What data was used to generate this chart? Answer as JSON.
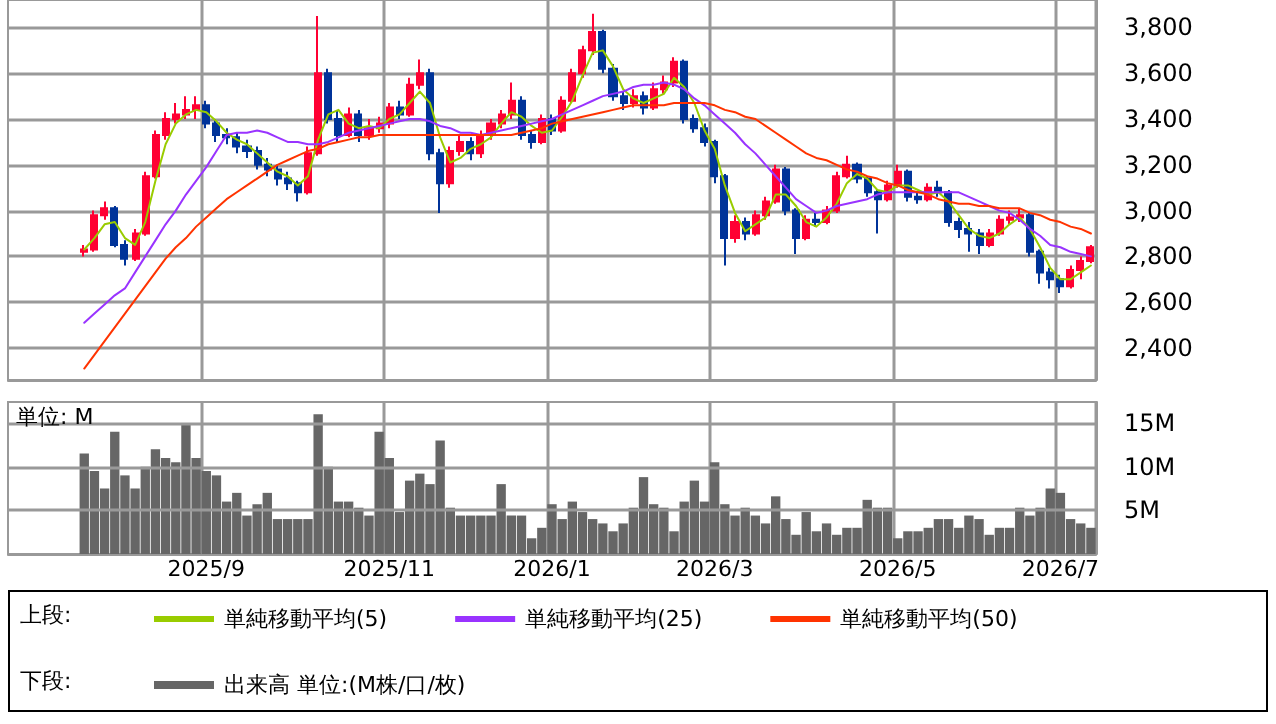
{
  "chart_data": [
    {
      "type": "candlestick",
      "categories": [
        null,
        null,
        null,
        null,
        null,
        null,
        null,
        null,
        null,
        null,
        null,
        null,
        null,
        null,
        null,
        null,
        null,
        null,
        null,
        "2025/9",
        null,
        null,
        null,
        null,
        null,
        null,
        null,
        null,
        null,
        null,
        null,
        null,
        null,
        null,
        null,
        null,
        null,
        "2025/11",
        null,
        null,
        null,
        null,
        null,
        null,
        null,
        null,
        null,
        null,
        null,
        null,
        null,
        null,
        null,
        "2026/1",
        null,
        null,
        null,
        null,
        null,
        null,
        null,
        null,
        null,
        null,
        null,
        null,
        null,
        null,
        null,
        "2026/3",
        null,
        null,
        null,
        null,
        null,
        null,
        null,
        null,
        null,
        null,
        null,
        null,
        null,
        null,
        null,
        null,
        null,
        "2026/5",
        null,
        null,
        null,
        null,
        null,
        null,
        null,
        null,
        null,
        null,
        null,
        null,
        null,
        null,
        null,
        "2026/7",
        null,
        null,
        null
      ],
      "ylim": [
        2260,
        3920
      ],
      "yticks": [
        {
          "value": 2400,
          "label": "2,400"
        },
        {
          "value": 2600,
          "label": "2,600"
        },
        {
          "value": 2800,
          "label": "2,800"
        },
        {
          "value": 3000,
          "label": "3,000"
        },
        {
          "value": 3200,
          "label": "3,200"
        },
        {
          "value": 3400,
          "label": "3,400"
        },
        {
          "value": 3600,
          "label": "3,600"
        },
        {
          "value": 3800,
          "label": "3,800"
        }
      ],
      "grid": true,
      "tick_labels": "y",
      "legend": "bottom",
      "marker": "none",
      "line_style": "solid",
      "annotations": [
        "上段:"
      ],
      "series": [
        {
          "type": "candlestick",
          "ohlc": [
            null,
            null,
            null,
            null,
            null,
            null,
            null,
            [
              2820,
              2850,
              2800,
              2830
            ],
            [
              2830,
              3000,
              2820,
              2980
            ],
            [
              2980,
              3040,
              2960,
              3010
            ],
            [
              3010,
              3020,
              2840,
              2850
            ],
            [
              2850,
              2870,
              2760,
              2790
            ],
            [
              2790,
              2920,
              2780,
              2900
            ],
            [
              2900,
              3170,
              2890,
              3150
            ],
            [
              3150,
              3350,
              3140,
              3330
            ],
            [
              3330,
              3430,
              3310,
              3400
            ],
            [
              3400,
              3470,
              3380,
              3420
            ],
            [
              3420,
              3500,
              3400,
              3440
            ],
            [
              3440,
              3500,
              3400,
              3460
            ],
            [
              3460,
              3480,
              3360,
              3380
            ],
            [
              3380,
              3400,
              3300,
              3330
            ],
            [
              3330,
              3360,
              3290,
              3320
            ],
            [
              3320,
              3340,
              3250,
              3280
            ],
            [
              3280,
              3310,
              3230,
              3260
            ],
            [
              3260,
              3280,
              3180,
              3200
            ],
            [
              3200,
              3230,
              3150,
              3180
            ],
            [
              3180,
              3200,
              3110,
              3140
            ],
            [
              3140,
              3170,
              3090,
              3120
            ],
            [
              3120,
              3130,
              3040,
              3080
            ],
            [
              3080,
              3280,
              3070,
              3250
            ],
            [
              3250,
              3850,
              3240,
              3600
            ],
            [
              3600,
              3620,
              3380,
              3400
            ],
            [
              3400,
              3440,
              3300,
              3330
            ],
            [
              3330,
              3450,
              3320,
              3420
            ],
            [
              3420,
              3440,
              3300,
              3330
            ],
            [
              3330,
              3400,
              3310,
              3360
            ],
            [
              3360,
              3410,
              3340,
              3380
            ],
            [
              3380,
              3470,
              3360,
              3450
            ],
            [
              3450,
              3480,
              3400,
              3420
            ],
            [
              3420,
              3580,
              3410,
              3550
            ],
            [
              3550,
              3660,
              3530,
              3600
            ],
            [
              3600,
              3620,
              3220,
              3250
            ],
            [
              3250,
              3270,
              2990,
              3120
            ],
            [
              3120,
              3280,
              3100,
              3260
            ],
            [
              3260,
              3330,
              3240,
              3300
            ],
            [
              3300,
              3320,
              3220,
              3250
            ],
            [
              3250,
              3350,
              3230,
              3330
            ],
            [
              3330,
              3400,
              3310,
              3380
            ],
            [
              3380,
              3440,
              3360,
              3420
            ],
            [
              3420,
              3560,
              3400,
              3480
            ],
            [
              3480,
              3500,
              3310,
              3330
            ],
            [
              3330,
              3350,
              3270,
              3300
            ],
            [
              3300,
              3420,
              3290,
              3400
            ],
            [
              3400,
              3420,
              3330,
              3350
            ],
            [
              3350,
              3500,
              3340,
              3480
            ],
            [
              3480,
              3620,
              3470,
              3600
            ],
            [
              3600,
              3720,
              3580,
              3700
            ],
            [
              3700,
              3860,
              3680,
              3780
            ],
            [
              3780,
              3790,
              3600,
              3620
            ],
            [
              3620,
              3640,
              3480,
              3500
            ],
            [
              3500,
              3520,
              3440,
              3470
            ],
            [
              3470,
              3530,
              3450,
              3500
            ],
            [
              3500,
              3520,
              3420,
              3450
            ],
            [
              3450,
              3560,
              3440,
              3530
            ],
            [
              3530,
              3590,
              3510,
              3560
            ],
            [
              3560,
              3670,
              3540,
              3650
            ],
            [
              3650,
              3660,
              3380,
              3400
            ],
            [
              3400,
              3420,
              3340,
              3360
            ],
            [
              3360,
              3380,
              3280,
              3300
            ],
            [
              3300,
              3310,
              3120,
              3150
            ],
            [
              3150,
              3160,
              2760,
              2880
            ],
            [
              2880,
              2980,
              2860,
              2950
            ],
            [
              2950,
              2970,
              2870,
              2900
            ],
            [
              2900,
              3000,
              2890,
              2980
            ],
            [
              2980,
              3060,
              2960,
              3040
            ],
            [
              3040,
              3200,
              3030,
              3180
            ],
            [
              3180,
              3190,
              2980,
              3000
            ],
            [
              3000,
              3010,
              2810,
              2880
            ],
            [
              2880,
              2980,
              2870,
              2960
            ],
            [
              2960,
              2990,
              2930,
              2950
            ],
            [
              2950,
              3020,
              2940,
              3000
            ],
            [
              3000,
              3170,
              2990,
              3150
            ],
            [
              3150,
              3240,
              3140,
              3200
            ],
            [
              3200,
              3210,
              3120,
              3140
            ],
            [
              3140,
              3150,
              3060,
              3080
            ],
            [
              3080,
              3090,
              2900,
              3050
            ],
            [
              3050,
              3130,
              3040,
              3110
            ],
            [
              3110,
              3200,
              3100,
              3170
            ],
            [
              3170,
              3180,
              3040,
              3060
            ],
            [
              3060,
              3080,
              3030,
              3050
            ],
            [
              3050,
              3120,
              3040,
              3100
            ],
            [
              3100,
              3130,
              3060,
              3080
            ],
            [
              3080,
              3090,
              2930,
              2950
            ],
            [
              2950,
              2970,
              2880,
              2920
            ],
            [
              2920,
              2950,
              2820,
              2900
            ],
            [
              2900,
              2920,
              2810,
              2850
            ],
            [
              2850,
              2920,
              2840,
              2900
            ],
            [
              2900,
              2980,
              2890,
              2960
            ],
            [
              2960,
              3000,
              2940,
              2970
            ],
            [
              2970,
              3010,
              2950,
              2980
            ],
            [
              2980,
              2990,
              2800,
              2820
            ],
            [
              2820,
              2830,
              2680,
              2730
            ],
            [
              2730,
              2750,
              2660,
              2700
            ],
            [
              2700,
              2720,
              2640,
              2670
            ],
            [
              2670,
              2760,
              2660,
              2740
            ],
            [
              2740,
              2800,
              2700,
              2780
            ],
            [
              2780,
              2850,
              2770,
              2840
            ]
          ],
          "colors": [
            null,
            null,
            null,
            null,
            null,
            null,
            null,
            "#ff0033",
            "#ff0033",
            "#ff0033",
            "#003399",
            "#003399",
            "#ff0033",
            "#ff0033",
            "#ff0033",
            "#ff0033",
            "#ff0033",
            "#ff0033",
            "#ff0033",
            "#003399",
            "#003399",
            "#003399",
            "#003399",
            "#003399",
            "#003399",
            "#003399",
            "#003399",
            "#003399",
            "#003399",
            "#ff0033",
            "#ff0033",
            "#003399",
            "#003399",
            "#ff0033",
            "#003399",
            "#ff0033",
            "#ff0033",
            "#ff0033",
            "#003399",
            "#ff0033",
            "#ff0033",
            "#003399",
            "#003399",
            "#ff0033",
            "#ff0033",
            "#003399",
            "#ff0033",
            "#ff0033",
            "#ff0033",
            "#ff0033",
            "#003399",
            "#003399",
            "#ff0033",
            "#003399",
            "#ff0033",
            "#ff0033",
            "#ff0033",
            "#ff0033",
            "#003399",
            "#003399",
            "#003399",
            "#ff0033",
            "#003399",
            "#ff0033",
            "#ff0033",
            "#ff0033",
            "#003399",
            "#003399",
            "#003399",
            "#003399",
            "#003399",
            "#ff0033",
            "#003399",
            "#ff0033",
            "#ff0033",
            "#ff0033",
            "#003399",
            "#003399",
            "#ff0033",
            "#003399",
            "#ff0033",
            "#ff0033",
            "#ff0033",
            "#003399",
            "#003399",
            "#003399",
            "#ff0033",
            "#ff0033",
            "#003399",
            "#003399",
            "#ff0033",
            "#003399",
            "#003399",
            "#003399",
            "#003399",
            "#003399",
            "#ff0033",
            "#ff0033",
            "#ff0033",
            "#ff0033",
            "#003399",
            "#003399",
            "#003399",
            "#003399",
            "#ff0033",
            "#ff0033",
            "#ff0033"
          ]
        },
        {
          "type": "line",
          "name": "単純移動平均(5)",
          "color": "#99cc00",
          "values": [
            null,
            null,
            null,
            null,
            null,
            null,
            null,
            2830,
            2880,
            2940,
            2950,
            2880,
            2850,
            2950,
            3130,
            3290,
            3380,
            3420,
            3440,
            3430,
            3390,
            3340,
            3310,
            3290,
            3250,
            3210,
            3170,
            3150,
            3110,
            3150,
            3310,
            3420,
            3440,
            3380,
            3360,
            3370,
            3360,
            3400,
            3420,
            3470,
            3520,
            3470,
            3320,
            3210,
            3230,
            3270,
            3290,
            3320,
            3380,
            3430,
            3410,
            3370,
            3340,
            3350,
            3410,
            3480,
            3590,
            3690,
            3700,
            3630,
            3530,
            3490,
            3470,
            3490,
            3510,
            3580,
            3540,
            3470,
            3350,
            3270,
            3110,
            2990,
            2910,
            2940,
            2970,
            3070,
            3070,
            3020,
            2950,
            2930,
            2970,
            3030,
            3120,
            3160,
            3140,
            3090,
            3080,
            3110,
            3110,
            3090,
            3070,
            3080,
            3040,
            2980,
            2920,
            2890,
            2880,
            2900,
            2940,
            2970,
            2920,
            2840,
            2750,
            2700,
            2700,
            2730,
            2760
          ]
        },
        {
          "type": "line",
          "name": "単純移動平均(25)",
          "color": "#9933ff",
          "values": [
            null,
            null,
            null,
            null,
            null,
            null,
            null,
            2510,
            2550,
            2590,
            2630,
            2660,
            2730,
            2800,
            2870,
            2940,
            3000,
            3070,
            3130,
            3190,
            3260,
            3330,
            3340,
            3340,
            3350,
            3340,
            3320,
            3300,
            3300,
            3290,
            3290,
            3300,
            3320,
            3340,
            3350,
            3360,
            3370,
            3380,
            3390,
            3400,
            3400,
            3390,
            3370,
            3360,
            3340,
            3340,
            3330,
            3340,
            3350,
            3360,
            3370,
            3380,
            3390,
            3400,
            3420,
            3440,
            3460,
            3480,
            3500,
            3510,
            3520,
            3540,
            3550,
            3550,
            3560,
            3550,
            3530,
            3490,
            3460,
            3420,
            3380,
            3340,
            3290,
            3250,
            3200,
            3150,
            3100,
            3050,
            3020,
            2990,
            3000,
            3020,
            3030,
            3040,
            3050,
            3070,
            3080,
            3080,
            3080,
            3080,
            3080,
            3080,
            3080,
            3080,
            3060,
            3040,
            3020,
            3000,
            2990,
            2960,
            2920,
            2890,
            2850,
            2840,
            2820,
            2810,
            2800
          ]
        },
        {
          "type": "line",
          "name": "単純移動平均(50)",
          "color": "#ff3300",
          "values": [
            null,
            null,
            null,
            null,
            null,
            null,
            null,
            2310,
            2370,
            2430,
            2490,
            2550,
            2610,
            2670,
            2730,
            2790,
            2840,
            2880,
            2930,
            2970,
            3010,
            3050,
            3080,
            3110,
            3140,
            3170,
            3200,
            3220,
            3240,
            3260,
            3270,
            3290,
            3300,
            3310,
            3320,
            3320,
            3330,
            3330,
            3330,
            3330,
            3330,
            3330,
            3330,
            3330,
            3330,
            3330,
            3330,
            3330,
            3330,
            3330,
            3340,
            3350,
            3360,
            3380,
            3390,
            3400,
            3410,
            3420,
            3430,
            3440,
            3450,
            3460,
            3460,
            3460,
            3460,
            3470,
            3470,
            3470,
            3470,
            3460,
            3440,
            3430,
            3410,
            3400,
            3370,
            3340,
            3310,
            3280,
            3250,
            3230,
            3220,
            3200,
            3180,
            3170,
            3150,
            3140,
            3120,
            3110,
            3090,
            3080,
            3070,
            3050,
            3040,
            3030,
            3030,
            3020,
            3020,
            3010,
            3010,
            3010,
            2990,
            2980,
            2960,
            2950,
            2930,
            2920,
            2900
          ]
        }
      ]
    },
    {
      "type": "bar",
      "categories": [
        null,
        null,
        null,
        null,
        null,
        null,
        null,
        null,
        null,
        null,
        null,
        null,
        null,
        null,
        null,
        null,
        null,
        null,
        null,
        "2025/9",
        null,
        null,
        null,
        null,
        null,
        null,
        null,
        null,
        null,
        null,
        null,
        null,
        null,
        null,
        null,
        null,
        null,
        "2025/11",
        null,
        null,
        null,
        null,
        null,
        null,
        null,
        null,
        null,
        null,
        null,
        null,
        null,
        null,
        null,
        "2026/1",
        null,
        null,
        null,
        null,
        null,
        null,
        null,
        null,
        null,
        null,
        null,
        null,
        null,
        null,
        null,
        "2026/3",
        null,
        null,
        null,
        null,
        null,
        null,
        null,
        null,
        null,
        null,
        null,
        null,
        null,
        null,
        null,
        null,
        null,
        "2026/5",
        null,
        null,
        null,
        null,
        null,
        null,
        null,
        null,
        null,
        null,
        null,
        null,
        null,
        null,
        null,
        "2026/7",
        null,
        null,
        null
      ],
      "ylim": [
        0,
        17.4
      ],
      "yticks": [
        {
          "value": 5,
          "label": "5M"
        },
        {
          "value": 10,
          "label": "10M"
        },
        {
          "value": 15,
          "label": "15M"
        }
      ],
      "grid": true,
      "legend": "bottom",
      "annotations": [
        "単位: M",
        "下段:"
      ],
      "series": [
        {
          "name": "出来高 単位:(M株/口/枚)",
          "color": "#666666",
          "values": [
            null,
            null,
            null,
            null,
            null,
            null,
            null,
            11.5,
            9.5,
            7.5,
            14,
            9,
            7.5,
            10,
            12,
            11,
            10.5,
            15,
            11,
            9.5,
            9,
            6,
            7,
            4.4,
            5.7,
            7,
            4,
            4,
            4,
            4,
            16,
            10,
            6,
            6,
            5.3,
            4.4,
            14,
            11,
            4.8,
            8.4,
            9.2,
            8,
            13,
            5.3,
            4.4,
            4.4,
            4.4,
            4.4,
            8,
            4.4,
            4.4,
            1.8,
            3,
            5.7,
            4,
            6,
            4.8,
            4,
            3.5,
            2.6,
            3.5,
            5.3,
            8.8,
            5.7,
            5.3,
            2.6,
            6,
            8.4,
            6,
            10.5,
            5.7,
            4.4,
            5.3,
            4.4,
            3.5,
            6.6,
            4,
            2.2,
            4.8,
            2.6,
            3.5,
            2.2,
            3,
            3,
            6.2,
            5.3,
            5.3,
            1.8,
            2.6,
            2.6,
            3,
            4,
            4,
            3,
            4.4,
            4,
            2.2,
            3,
            3,
            5.3,
            4.4,
            5.3,
            7.5,
            7,
            4,
            3.5,
            3
          ]
        }
      ]
    }
  ]
}
